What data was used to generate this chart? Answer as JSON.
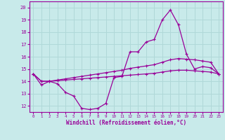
{
  "xlabel": "Windchill (Refroidissement éolien,°C)",
  "background_color": "#c8eaea",
  "grid_color": "#b0d8d8",
  "line_color": "#990099",
  "xlim": [
    -0.5,
    23.5
  ],
  "ylim": [
    11.5,
    20.5
  ],
  "xticks": [
    0,
    1,
    2,
    3,
    4,
    5,
    6,
    7,
    8,
    9,
    10,
    11,
    12,
    13,
    14,
    15,
    16,
    17,
    18,
    19,
    20,
    21,
    22,
    23
  ],
  "yticks": [
    12,
    13,
    14,
    15,
    16,
    17,
    18,
    19,
    20
  ],
  "line1_x": [
    0,
    1,
    2,
    3,
    4,
    5,
    6,
    7,
    8,
    9,
    10,
    11,
    12,
    13,
    14,
    15,
    16,
    17,
    18,
    19,
    20,
    21,
    22,
    23
  ],
  "line1_y": [
    14.6,
    13.7,
    14.0,
    13.8,
    13.1,
    12.8,
    11.8,
    11.7,
    11.8,
    12.2,
    14.3,
    14.4,
    16.4,
    16.4,
    17.2,
    17.4,
    19.0,
    19.8,
    18.6,
    16.2,
    15.0,
    15.2,
    15.1,
    14.6
  ],
  "line2_x": [
    0,
    1,
    2,
    3,
    4,
    5,
    6,
    7,
    8,
    9,
    10,
    11,
    12,
    13,
    14,
    15,
    16,
    17,
    18,
    19,
    20,
    21,
    22,
    23
  ],
  "line2_y": [
    14.6,
    14.0,
    14.0,
    14.1,
    14.2,
    14.3,
    14.4,
    14.5,
    14.6,
    14.7,
    14.8,
    14.9,
    15.05,
    15.15,
    15.25,
    15.35,
    15.55,
    15.75,
    15.85,
    15.8,
    15.75,
    15.65,
    15.55,
    14.6
  ],
  "line3_x": [
    0,
    1,
    2,
    3,
    4,
    5,
    6,
    7,
    8,
    9,
    10,
    11,
    12,
    13,
    14,
    15,
    16,
    17,
    18,
    19,
    20,
    21,
    22,
    23
  ],
  "line3_y": [
    14.6,
    14.0,
    14.0,
    14.05,
    14.1,
    14.15,
    14.2,
    14.25,
    14.3,
    14.35,
    14.4,
    14.45,
    14.5,
    14.55,
    14.6,
    14.65,
    14.75,
    14.85,
    14.9,
    14.9,
    14.85,
    14.8,
    14.75,
    14.6
  ]
}
